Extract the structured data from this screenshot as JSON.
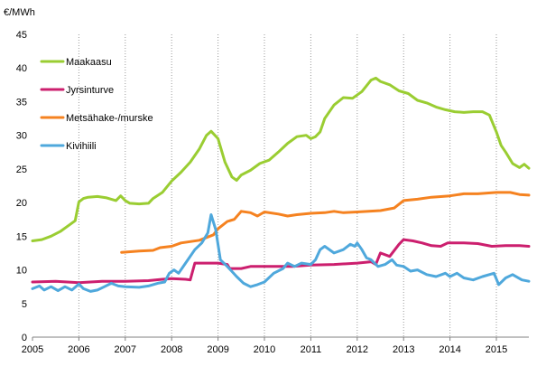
{
  "chart_data": {
    "type": "line",
    "title": "",
    "unit_label": "€/MWh",
    "xlabel": "",
    "ylabel": "€/MWh",
    "xlim": [
      2005,
      2015.7
    ],
    "ylim": [
      0,
      45
    ],
    "y_ticks": [
      0,
      5,
      10,
      15,
      20,
      25,
      30,
      35,
      40,
      45
    ],
    "x_ticks": [
      "2005",
      "2006",
      "2007",
      "2008",
      "2009",
      "2010",
      "2011",
      "2012",
      "2013",
      "2014",
      "2015"
    ],
    "grid": "vertical dotted at year boundaries",
    "legend_position": "top-left",
    "series": [
      {
        "name": "Maakaasu",
        "color": "#9ACD32",
        "points": [
          [
            2005.0,
            14.3
          ],
          [
            2005.2,
            14.5
          ],
          [
            2005.4,
            15.0
          ],
          [
            2005.6,
            15.7
          ],
          [
            2005.8,
            16.7
          ],
          [
            2005.92,
            17.3
          ],
          [
            2006.0,
            20.1
          ],
          [
            2006.1,
            20.6
          ],
          [
            2006.2,
            20.8
          ],
          [
            2006.4,
            20.9
          ],
          [
            2006.6,
            20.7
          ],
          [
            2006.8,
            20.3
          ],
          [
            2006.9,
            21.0
          ],
          [
            2007.0,
            20.3
          ],
          [
            2007.1,
            19.9
          ],
          [
            2007.3,
            19.8
          ],
          [
            2007.5,
            19.9
          ],
          [
            2007.6,
            20.6
          ],
          [
            2007.8,
            21.5
          ],
          [
            2008.0,
            23.2
          ],
          [
            2008.2,
            24.5
          ],
          [
            2008.4,
            26.0
          ],
          [
            2008.6,
            28.0
          ],
          [
            2008.75,
            30.0
          ],
          [
            2008.85,
            30.6
          ],
          [
            2009.0,
            29.5
          ],
          [
            2009.15,
            26.0
          ],
          [
            2009.3,
            23.8
          ],
          [
            2009.4,
            23.3
          ],
          [
            2009.5,
            24.1
          ],
          [
            2009.7,
            24.8
          ],
          [
            2009.9,
            25.8
          ],
          [
            2010.1,
            26.3
          ],
          [
            2010.3,
            27.5
          ],
          [
            2010.5,
            28.8
          ],
          [
            2010.7,
            29.8
          ],
          [
            2010.9,
            30.0
          ],
          [
            2011.0,
            29.5
          ],
          [
            2011.1,
            29.8
          ],
          [
            2011.2,
            30.5
          ],
          [
            2011.3,
            32.5
          ],
          [
            2011.5,
            34.5
          ],
          [
            2011.7,
            35.6
          ],
          [
            2011.9,
            35.5
          ],
          [
            2012.1,
            36.5
          ],
          [
            2012.3,
            38.2
          ],
          [
            2012.4,
            38.5
          ],
          [
            2012.5,
            38.0
          ],
          [
            2012.7,
            37.5
          ],
          [
            2012.9,
            36.6
          ],
          [
            2013.1,
            36.2
          ],
          [
            2013.3,
            35.2
          ],
          [
            2013.5,
            34.8
          ],
          [
            2013.7,
            34.2
          ],
          [
            2013.9,
            33.8
          ],
          [
            2014.1,
            33.5
          ],
          [
            2014.3,
            33.4
          ],
          [
            2014.5,
            33.5
          ],
          [
            2014.7,
            33.5
          ],
          [
            2014.85,
            33.0
          ],
          [
            2015.0,
            30.5
          ],
          [
            2015.1,
            28.5
          ],
          [
            2015.2,
            27.5
          ],
          [
            2015.35,
            25.8
          ],
          [
            2015.5,
            25.2
          ],
          [
            2015.6,
            25.7
          ],
          [
            2015.7,
            25.1
          ]
        ]
      },
      {
        "name": "Jyrsinturve",
        "color": "#CC1F6E",
        "points": [
          [
            2005.0,
            8.2
          ],
          [
            2005.5,
            8.3
          ],
          [
            2006.0,
            8.1
          ],
          [
            2006.5,
            8.3
          ],
          [
            2007.0,
            8.3
          ],
          [
            2007.5,
            8.4
          ],
          [
            2007.8,
            8.6
          ],
          [
            2008.0,
            8.7
          ],
          [
            2008.3,
            8.6
          ],
          [
            2008.4,
            8.5
          ],
          [
            2008.5,
            11.0
          ],
          [
            2008.8,
            11.0
          ],
          [
            2009.0,
            11.0
          ],
          [
            2009.2,
            10.8
          ],
          [
            2009.25,
            10.2
          ],
          [
            2009.5,
            10.2
          ],
          [
            2009.7,
            10.5
          ],
          [
            2010.0,
            10.5
          ],
          [
            2010.3,
            10.5
          ],
          [
            2010.6,
            10.5
          ],
          [
            2011.0,
            10.7
          ],
          [
            2011.5,
            10.8
          ],
          [
            2012.0,
            11.0
          ],
          [
            2012.3,
            11.2
          ],
          [
            2012.4,
            10.8
          ],
          [
            2012.5,
            12.5
          ],
          [
            2012.7,
            12.0
          ],
          [
            2012.9,
            13.8
          ],
          [
            2013.0,
            14.5
          ],
          [
            2013.2,
            14.3
          ],
          [
            2013.4,
            14.0
          ],
          [
            2013.6,
            13.6
          ],
          [
            2013.8,
            13.5
          ],
          [
            2013.95,
            14.0
          ],
          [
            2014.3,
            14.0
          ],
          [
            2014.6,
            13.9
          ],
          [
            2014.9,
            13.5
          ],
          [
            2015.2,
            13.6
          ],
          [
            2015.5,
            13.6
          ],
          [
            2015.7,
            13.5
          ]
        ]
      },
      {
        "name": "Metsähake-/murske",
        "color": "#F58220",
        "points": [
          [
            2006.92,
            12.6
          ],
          [
            2007.3,
            12.8
          ],
          [
            2007.6,
            12.9
          ],
          [
            2007.75,
            13.3
          ],
          [
            2008.0,
            13.5
          ],
          [
            2008.2,
            14.0
          ],
          [
            2008.6,
            14.4
          ],
          [
            2008.9,
            15.2
          ],
          [
            2009.0,
            16.1
          ],
          [
            2009.2,
            17.2
          ],
          [
            2009.35,
            17.5
          ],
          [
            2009.5,
            18.7
          ],
          [
            2009.7,
            18.5
          ],
          [
            2009.85,
            18.0
          ],
          [
            2010.0,
            18.6
          ],
          [
            2010.3,
            18.3
          ],
          [
            2010.5,
            18.0
          ],
          [
            2010.7,
            18.2
          ],
          [
            2011.0,
            18.4
          ],
          [
            2011.3,
            18.5
          ],
          [
            2011.5,
            18.7
          ],
          [
            2011.7,
            18.5
          ],
          [
            2012.0,
            18.6
          ],
          [
            2012.5,
            18.8
          ],
          [
            2012.8,
            19.2
          ],
          [
            2013.0,
            20.3
          ],
          [
            2013.3,
            20.5
          ],
          [
            2013.6,
            20.8
          ],
          [
            2014.0,
            21.0
          ],
          [
            2014.3,
            21.3
          ],
          [
            2014.6,
            21.3
          ],
          [
            2015.0,
            21.5
          ],
          [
            2015.3,
            21.5
          ],
          [
            2015.5,
            21.2
          ],
          [
            2015.7,
            21.1
          ]
        ]
      },
      {
        "name": "Kivihiili",
        "color": "#4FA8DC",
        "points": [
          [
            2005.0,
            7.2
          ],
          [
            2005.15,
            7.6
          ],
          [
            2005.25,
            7.0
          ],
          [
            2005.4,
            7.5
          ],
          [
            2005.55,
            6.9
          ],
          [
            2005.7,
            7.5
          ],
          [
            2005.85,
            7.0
          ],
          [
            2006.0,
            7.9
          ],
          [
            2006.1,
            7.2
          ],
          [
            2006.25,
            6.8
          ],
          [
            2006.4,
            7.0
          ],
          [
            2006.55,
            7.5
          ],
          [
            2006.7,
            8.0
          ],
          [
            2006.85,
            7.6
          ],
          [
            2007.0,
            7.5
          ],
          [
            2007.3,
            7.4
          ],
          [
            2007.5,
            7.6
          ],
          [
            2007.7,
            8.0
          ],
          [
            2007.85,
            8.2
          ],
          [
            2007.95,
            9.5
          ],
          [
            2008.05,
            10.0
          ],
          [
            2008.15,
            9.5
          ],
          [
            2008.3,
            11.0
          ],
          [
            2008.5,
            13.0
          ],
          [
            2008.65,
            14.0
          ],
          [
            2008.78,
            15.5
          ],
          [
            2008.85,
            18.2
          ],
          [
            2008.95,
            16.0
          ],
          [
            2009.05,
            11.5
          ],
          [
            2009.2,
            10.5
          ],
          [
            2009.4,
            9.0
          ],
          [
            2009.55,
            8.0
          ],
          [
            2009.7,
            7.5
          ],
          [
            2009.85,
            7.8
          ],
          [
            2010.0,
            8.2
          ],
          [
            2010.2,
            9.5
          ],
          [
            2010.4,
            10.2
          ],
          [
            2010.5,
            11.0
          ],
          [
            2010.65,
            10.5
          ],
          [
            2010.8,
            11.0
          ],
          [
            2011.0,
            10.8
          ],
          [
            2011.1,
            11.5
          ],
          [
            2011.2,
            13.0
          ],
          [
            2011.3,
            13.5
          ],
          [
            2011.5,
            12.5
          ],
          [
            2011.7,
            13.0
          ],
          [
            2011.85,
            13.8
          ],
          [
            2011.95,
            13.5
          ],
          [
            2012.0,
            14.0
          ],
          [
            2012.1,
            13.0
          ],
          [
            2012.2,
            11.8
          ],
          [
            2012.3,
            11.5
          ],
          [
            2012.45,
            10.5
          ],
          [
            2012.6,
            10.8
          ],
          [
            2012.75,
            11.5
          ],
          [
            2012.85,
            10.7
          ],
          [
            2013.0,
            10.5
          ],
          [
            2013.15,
            9.8
          ],
          [
            2013.3,
            10.0
          ],
          [
            2013.5,
            9.3
          ],
          [
            2013.7,
            9.0
          ],
          [
            2013.9,
            9.5
          ],
          [
            2014.0,
            9.0
          ],
          [
            2014.15,
            9.5
          ],
          [
            2014.3,
            8.8
          ],
          [
            2014.5,
            8.5
          ],
          [
            2014.7,
            9.0
          ],
          [
            2014.95,
            9.5
          ],
          [
            2015.05,
            7.8
          ],
          [
            2015.2,
            8.8
          ],
          [
            2015.35,
            9.3
          ],
          [
            2015.55,
            8.5
          ],
          [
            2015.7,
            8.3
          ]
        ]
      }
    ]
  }
}
